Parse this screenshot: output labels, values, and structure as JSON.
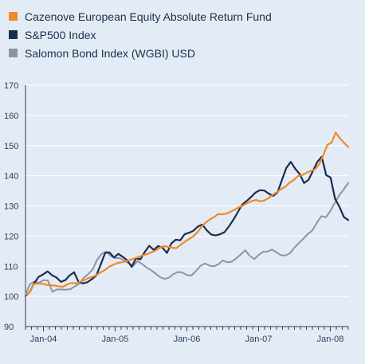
{
  "colors": {
    "orange": "#f0892a",
    "navy": "#1a2d4f",
    "gray": "#8a96a3",
    "background": "#e3ecf6",
    "grid": "#ffffff"
  },
  "legend": [
    {
      "label": "Cazenove European Equity Absolute Return Fund",
      "color": "#f0892a"
    },
    {
      "label": "S&P500 Index",
      "color": "#1a2d4f"
    },
    {
      "label": "Salomon Bond Index (WGBI) USD",
      "color": "#8a96a3"
    }
  ],
  "chart_data": {
    "type": "line",
    "xlabel": "",
    "ylabel": "",
    "ylim": [
      90,
      170
    ],
    "yticks": [
      90,
      100,
      110,
      120,
      130,
      140,
      150,
      160,
      170
    ],
    "xticks": [
      "Jan-04",
      "Jan-05",
      "Jan-06",
      "Jan-07",
      "Jan-08"
    ],
    "grid": "horizontal",
    "legend_position": "top",
    "x_start": "2003-10",
    "x_end": "2008-04",
    "series": [
      {
        "name": "Cazenove European Equity Absolute Return Fund",
        "color": "#f0892a",
        "values": [
          100.5,
          101.3,
          104.1,
          104.2,
          104.2,
          103.8,
          103.7,
          103.6,
          103.3,
          103.2,
          104.0,
          104.5,
          104.3,
          104.8,
          105.4,
          106.1,
          106.5,
          107.1,
          108.0,
          108.8,
          109.9,
          110.5,
          111.1,
          111.3,
          111.7,
          112.1,
          112.6,
          113.1,
          113.6,
          114.0,
          114.6,
          115.2,
          116.1,
          116.7,
          116.4,
          116.1,
          116.0,
          117.1,
          118.1,
          119.0,
          119.9,
          121.2,
          123.1,
          124.5,
          125.5,
          126.3,
          127.3,
          127.2,
          127.5,
          128.1,
          128.8,
          129.6,
          130.2,
          131.0,
          131.6,
          132.0,
          131.5,
          131.8,
          132.6,
          133.7,
          134.6,
          135.6,
          136.4,
          137.7,
          138.6,
          139.9,
          140.2,
          140.9,
          141.6,
          142.0,
          143.7,
          146.6,
          150.2,
          151.0,
          154.3,
          152.4,
          150.9,
          149.5
        ]
      },
      {
        "name": "S&P500 Index",
        "color": "#1a2d4f",
        "values": [
          100.2,
          101.5,
          104.5,
          106.5,
          107.3,
          108.3,
          107.0,
          106.3,
          104.8,
          105.4,
          107.0,
          108.0,
          104.8,
          104.3,
          104.7,
          105.7,
          106.9,
          110.5,
          114.4,
          114.6,
          112.9,
          114.1,
          113.1,
          112.0,
          109.8,
          112.6,
          112.3,
          114.8,
          116.8,
          115.4,
          116.7,
          116.1,
          114.4,
          117.6,
          118.8,
          118.6,
          120.6,
          121.1,
          121.8,
          123.2,
          123.8,
          121.9,
          120.5,
          120.2,
          120.6,
          121.3,
          123.2,
          125.4,
          127.9,
          130.4,
          131.6,
          132.9,
          134.4,
          135.2,
          135.1,
          134.1,
          133.3,
          134.5,
          138.6,
          142.6,
          144.6,
          142.3,
          140.6,
          137.6,
          138.6,
          141.6,
          144.6,
          146.3,
          140.2,
          139.4,
          132.4,
          129.7,
          126.3,
          125.3
        ]
      },
      {
        "name": "Salomon Bond Index (WGBI) USD",
        "color": "#8a96a3",
        "values": [
          100.6,
          104.1,
          104.9,
          104.5,
          105.4,
          105.3,
          101.5,
          102.3,
          102.3,
          102.2,
          102.4,
          103.3,
          104.2,
          106.2,
          107.4,
          109.0,
          112.2,
          114.1,
          114.9,
          113.4,
          112.7,
          112.7,
          111.9,
          111.0,
          110.1,
          111.7,
          110.7,
          109.6,
          108.7,
          107.6,
          106.4,
          105.8,
          106.2,
          107.4,
          108.1,
          107.9,
          107.1,
          106.9,
          108.4,
          110.1,
          110.9,
          110.2,
          110.0,
          110.6,
          111.9,
          111.3,
          111.5,
          112.6,
          113.9,
          115.3,
          113.5,
          112.4,
          113.7,
          114.8,
          114.9,
          115.5,
          114.6,
          113.6,
          113.6,
          114.3,
          116.2,
          117.7,
          119.2,
          120.7,
          121.9,
          124.4,
          126.6,
          126.2,
          128.3,
          131.0,
          133.6,
          135.5,
          137.6
        ]
      }
    ]
  }
}
